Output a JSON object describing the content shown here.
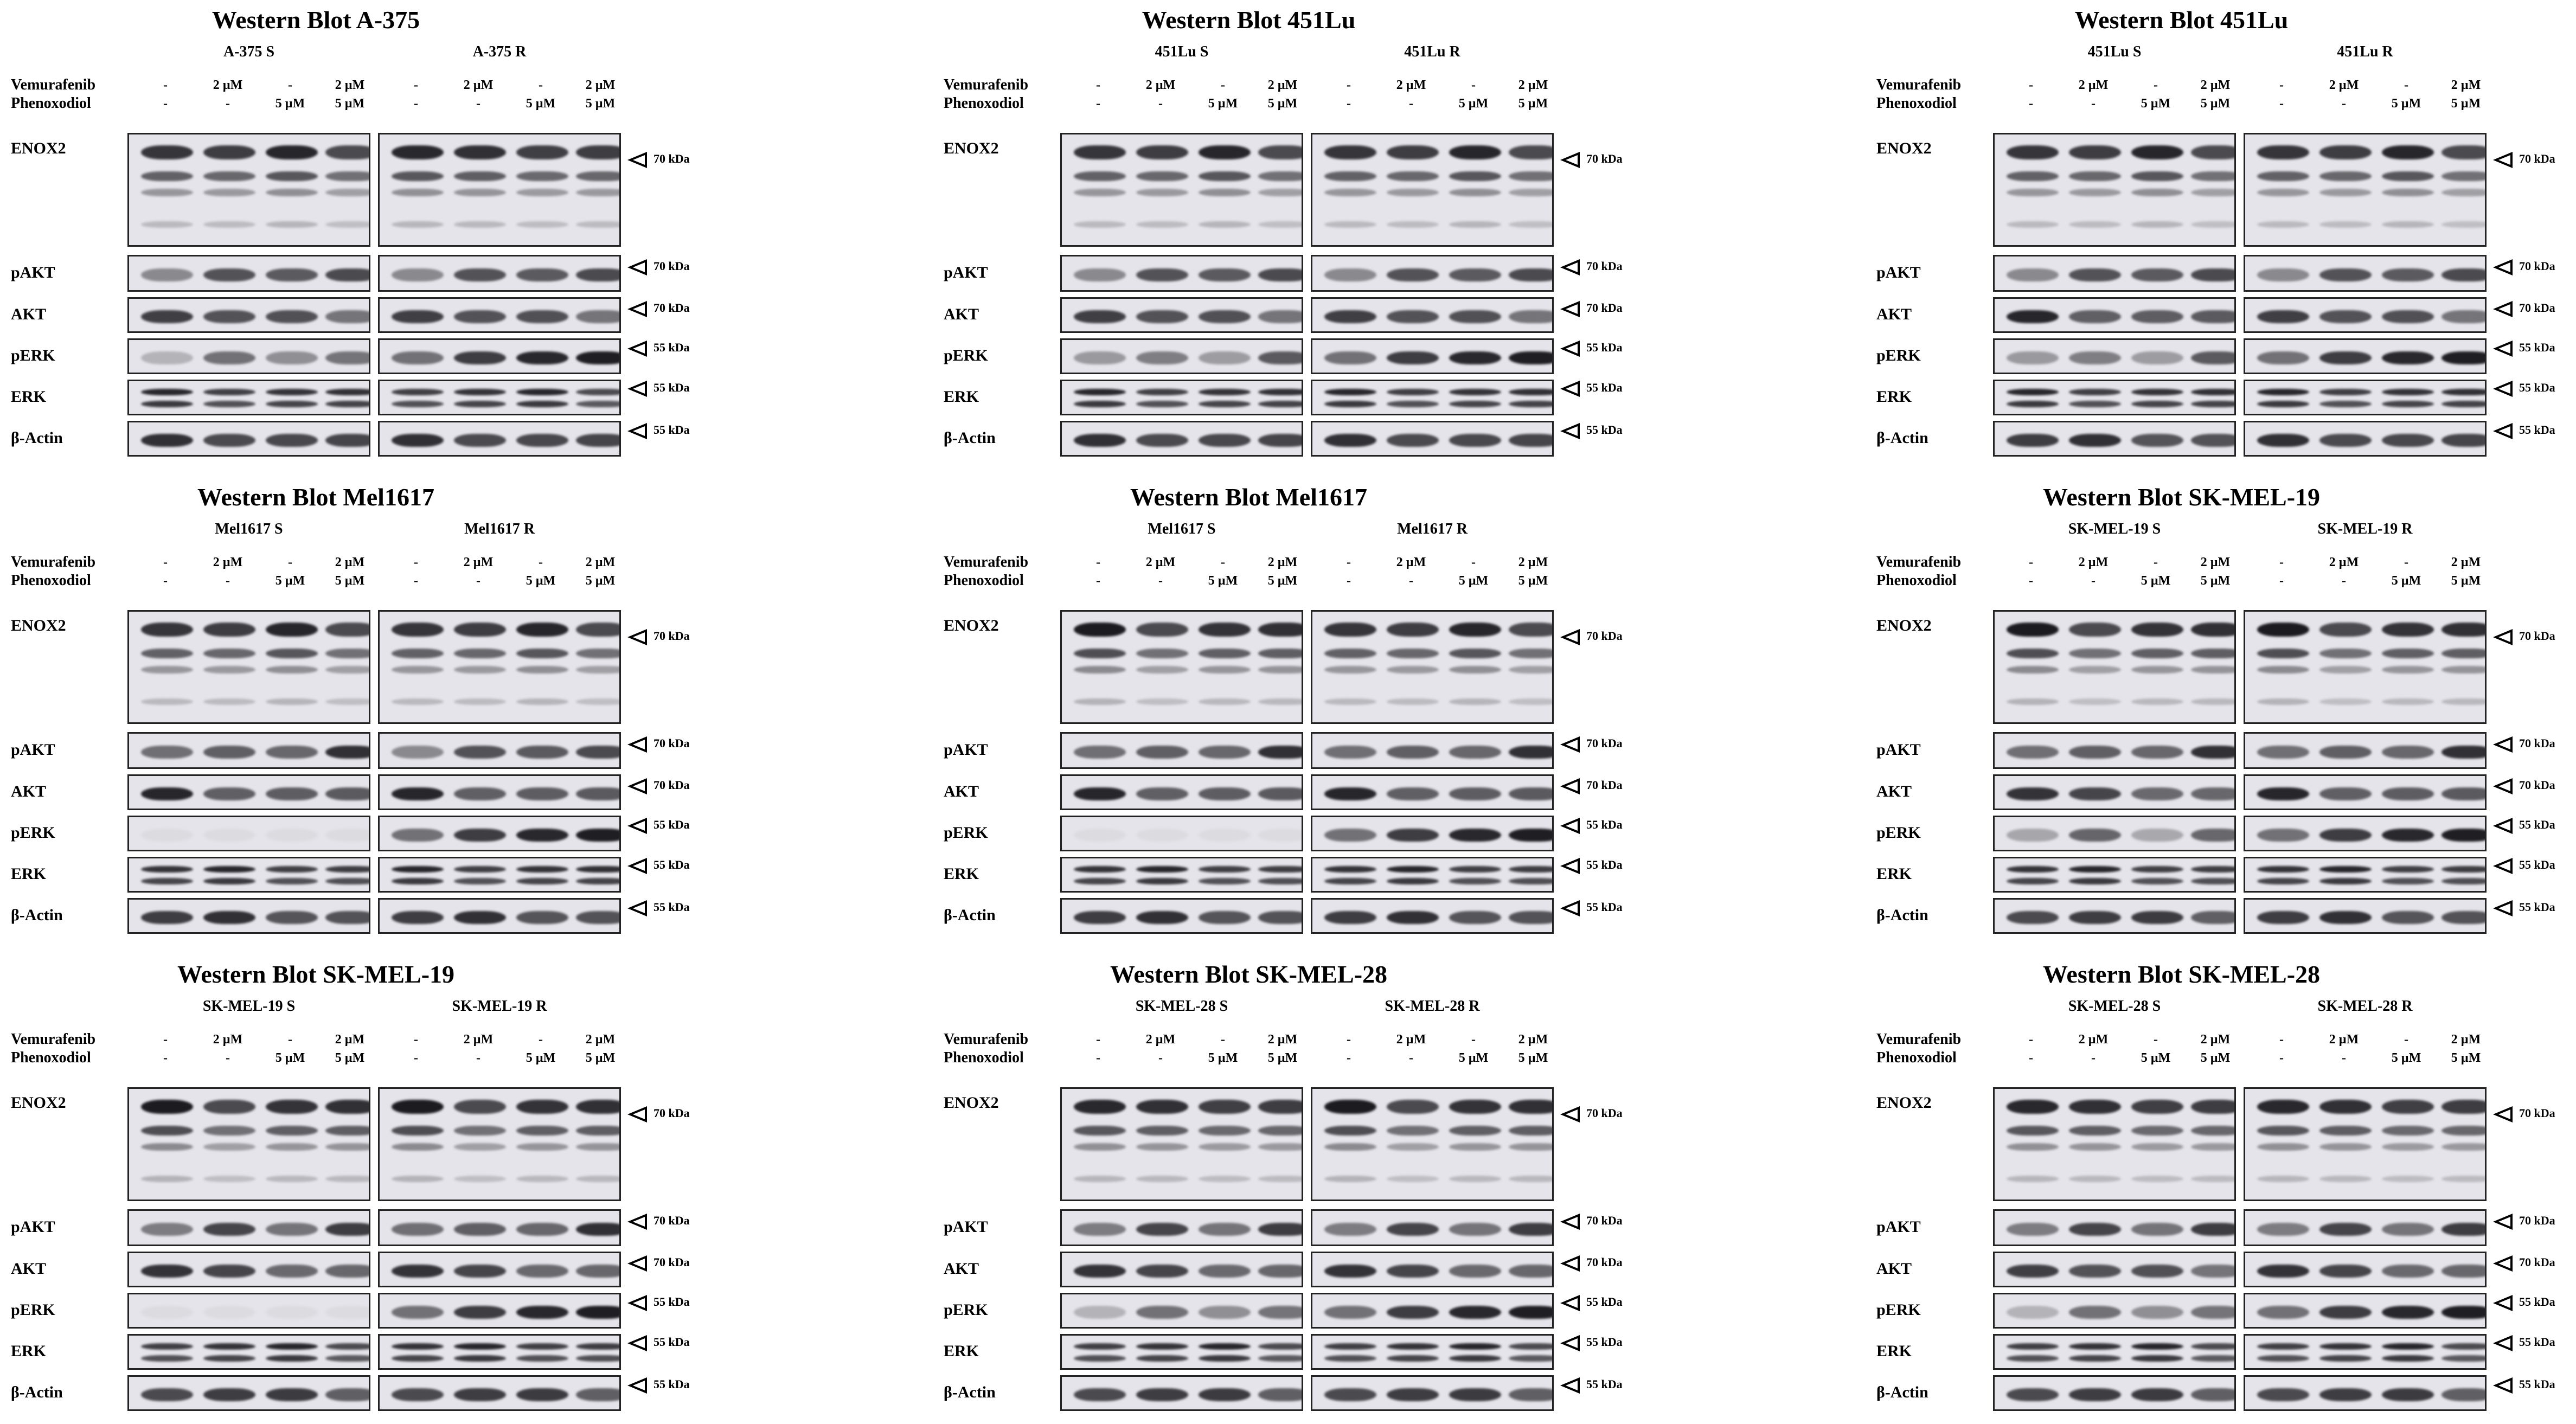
{
  "figure": {
    "panels": [
      {
        "title": "Western Blot A-375",
        "cells": [
          "A-375 S",
          "A-375 R"
        ]
      },
      {
        "title": "Western Blot 451Lu",
        "cells": [
          "451Lu S",
          "451Lu R"
        ]
      },
      {
        "title": "Western Blot 451Lu",
        "cells": [
          "451Lu S",
          "451Lu R"
        ]
      },
      {
        "title": "Western Blot Mel1617",
        "cells": [
          "Mel1617 S",
          "Mel1617 R"
        ]
      },
      {
        "title": "Western Blot Mel1617",
        "cells": [
          "Mel1617 S",
          "Mel1617 R"
        ]
      },
      {
        "title": "Western Blot SK-MEL-19",
        "cells": [
          "SK-MEL-19 S",
          "SK-MEL-19 R"
        ]
      },
      {
        "title": "Western Blot SK-MEL-19",
        "cells": [
          "SK-MEL-19 S",
          "SK-MEL-19 R"
        ]
      },
      {
        "title": "Western Blot SK-MEL-28",
        "cells": [
          "SK-MEL-28 S",
          "SK-MEL-28 R"
        ]
      },
      {
        "title": "Western Blot SK-MEL-28",
        "cells": [
          "SK-MEL-28 S",
          "SK-MEL-28 R"
        ]
      }
    ],
    "treatments": {
      "row1_label": "Vemurafenib",
      "row2_label": "Phenoxodiol",
      "row1_values": [
        "-",
        "2 µM",
        "-",
        "2 µM"
      ],
      "row2_values": [
        "-",
        "-",
        "5 µM",
        "5 µM"
      ]
    },
    "proteins": [
      "ENOX2",
      "pAKT",
      "AKT",
      "pERK",
      "ERK",
      "β-Actin"
    ],
    "markers": [
      "70 kDa",
      "70 kDa",
      "70 kDa",
      "55 kDa",
      "55 kDa",
      "55 kDa"
    ]
  }
}
